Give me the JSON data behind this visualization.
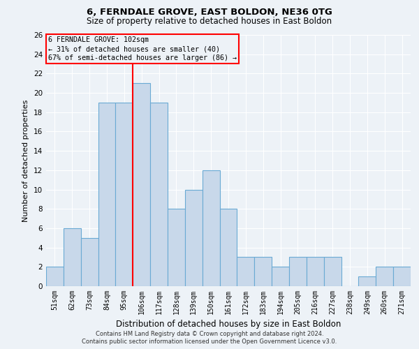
{
  "title1": "6, FERNDALE GROVE, EAST BOLDON, NE36 0TG",
  "title2": "Size of property relative to detached houses in East Boldon",
  "xlabel": "Distribution of detached houses by size in East Boldon",
  "ylabel": "Number of detached properties",
  "categories": [
    "51sqm",
    "62sqm",
    "73sqm",
    "84sqm",
    "95sqm",
    "106sqm",
    "117sqm",
    "128sqm",
    "139sqm",
    "150sqm",
    "161sqm",
    "172sqm",
    "183sqm",
    "194sqm",
    "205sqm",
    "216sqm",
    "227sqm",
    "238sqm",
    "249sqm",
    "260sqm",
    "271sqm"
  ],
  "values": [
    2,
    6,
    5,
    19,
    19,
    21,
    19,
    8,
    10,
    12,
    8,
    3,
    3,
    2,
    3,
    3,
    3,
    0,
    1,
    2,
    2
  ],
  "bar_color": "#c8d8ea",
  "bar_edge_color": "#6aaad4",
  "annotation_title": "6 FERNDALE GROVE: 102sqm",
  "annotation_line1": "← 31% of detached houses are smaller (40)",
  "annotation_line2": "67% of semi-detached houses are larger (86) →",
  "ylim": [
    0,
    26
  ],
  "yticks": [
    0,
    2,
    4,
    6,
    8,
    10,
    12,
    14,
    16,
    18,
    20,
    22,
    24,
    26
  ],
  "footer1": "Contains HM Land Registry data © Crown copyright and database right 2024.",
  "footer2": "Contains public sector information licensed under the Open Government Licence v3.0.",
  "bg_color": "#edf2f7",
  "grid_color": "#ffffff"
}
